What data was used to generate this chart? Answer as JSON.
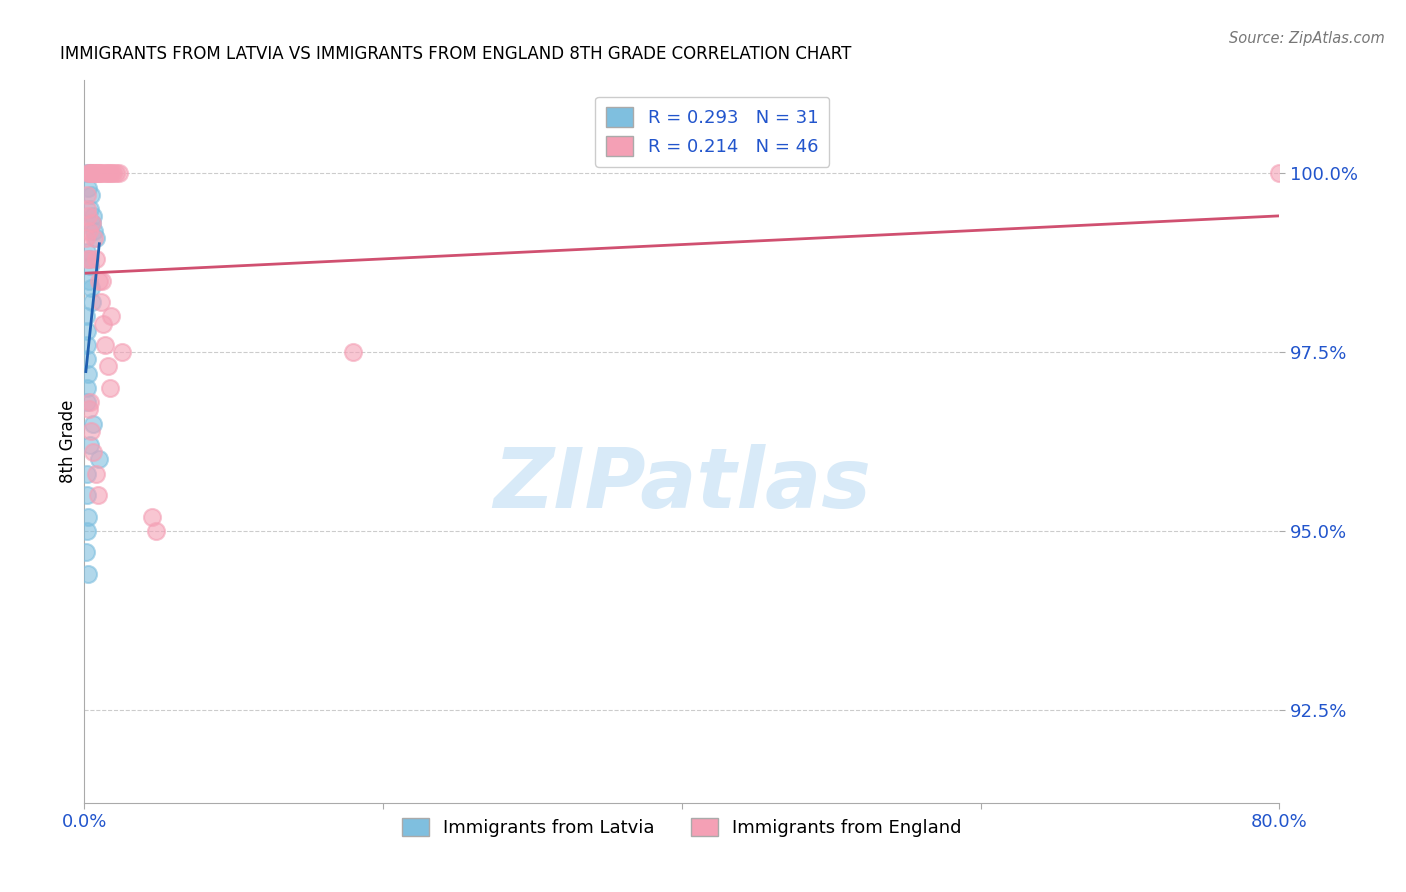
{
  "title": "IMMIGRANTS FROM LATVIA VS IMMIGRANTS FROM ENGLAND 8TH GRADE CORRELATION CHART",
  "source": "Source: ZipAtlas.com",
  "ylabel": "8th Grade",
  "xlim": [
    0.0,
    80.0
  ],
  "ylim": [
    91.2,
    101.3
  ],
  "x_ticks": [
    0.0,
    20.0,
    40.0,
    60.0,
    80.0
  ],
  "x_tick_labels": [
    "0.0%",
    "",
    "",
    "",
    "80.0%"
  ],
  "y_ticks": [
    92.5,
    95.0,
    97.5,
    100.0
  ],
  "y_tick_labels": [
    "92.5%",
    "95.0%",
    "97.5%",
    "100.0%"
  ],
  "legend_label1": "Immigrants from Latvia",
  "legend_label2": "Immigrants from England",
  "R1": 0.293,
  "N1": 31,
  "R2": 0.214,
  "N2": 46,
  "color_latvia": "#7fbfdf",
  "color_england": "#f4a0b5",
  "color_trend_latvia": "#2060b0",
  "color_trend_england": "#d05070",
  "latvia_x": [
    0.15,
    0.35,
    0.25,
    0.45,
    0.35,
    0.55,
    0.5,
    0.65,
    0.75,
    0.2,
    0.3,
    0.4,
    0.3,
    0.45,
    0.5,
    0.1,
    0.2,
    0.15,
    0.2,
    0.25,
    0.15,
    0.2,
    0.55,
    0.35,
    1.0,
    0.2,
    0.15,
    0.25,
    0.18,
    0.12,
    0.22
  ],
  "latvia_y": [
    100.0,
    100.0,
    99.8,
    99.7,
    99.5,
    99.4,
    99.3,
    99.2,
    99.1,
    98.9,
    98.8,
    98.7,
    98.5,
    98.4,
    98.2,
    98.0,
    97.8,
    97.6,
    97.4,
    97.2,
    97.0,
    96.8,
    96.5,
    96.2,
    96.0,
    95.8,
    95.5,
    95.2,
    95.0,
    94.7,
    94.4
  ],
  "england_x": [
    0.25,
    0.35,
    0.45,
    0.55,
    0.65,
    0.75,
    0.85,
    0.95,
    1.05,
    1.2,
    1.35,
    1.5,
    1.65,
    1.8,
    1.9,
    2.1,
    2.3,
    0.5,
    0.65,
    0.8,
    0.95,
    1.1,
    1.25,
    1.4,
    1.55,
    1.7,
    0.3,
    0.45,
    0.6,
    0.75,
    0.9,
    1.2,
    1.8,
    2.5,
    4.5,
    4.8,
    0.2,
    0.3,
    0.4,
    18.0,
    0.35,
    80.0,
    0.15,
    0.25,
    0.12,
    0.18
  ],
  "england_y": [
    100.0,
    100.0,
    100.0,
    100.0,
    100.0,
    100.0,
    100.0,
    100.0,
    100.0,
    100.0,
    100.0,
    100.0,
    100.0,
    100.0,
    100.0,
    100.0,
    100.0,
    99.3,
    99.1,
    98.8,
    98.5,
    98.2,
    97.9,
    97.6,
    97.3,
    97.0,
    96.7,
    96.4,
    96.1,
    95.8,
    95.5,
    98.5,
    98.0,
    97.5,
    95.2,
    95.0,
    99.5,
    99.2,
    98.8,
    97.5,
    96.8,
    100.0,
    99.7,
    99.4,
    99.1,
    98.8
  ]
}
